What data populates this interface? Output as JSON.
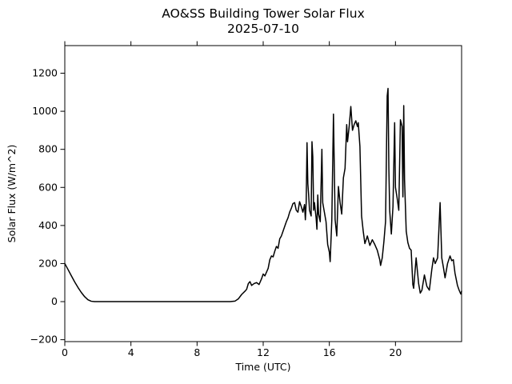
{
  "figure": {
    "background_color": "#ffffff",
    "text_color": "#000000"
  },
  "chart_data": {
    "type": "line",
    "title": "AO&SS Building Tower Solar Flux",
    "subtitle": "2025-07-10",
    "xlabel": "Time (UTC)",
    "ylabel": "Solar Flux (W/m^2)",
    "xlim": [
      0,
      24
    ],
    "ylim": [
      -210,
      1345
    ],
    "x_ticks": [
      0,
      4,
      8,
      12,
      16,
      20
    ],
    "y_ticks": [
      -200,
      0,
      200,
      400,
      600,
      800,
      1000,
      1200
    ],
    "grid": false,
    "legend": null,
    "line_color": "#000000",
    "line_width": 1.5,
    "x": [
      0.0,
      0.2,
      0.4,
      0.6,
      0.8,
      1.0,
      1.2,
      1.4,
      1.6,
      1.8,
      3.0,
      5.0,
      7.0,
      9.0,
      10.0,
      10.3,
      10.5,
      10.7,
      10.9,
      11.0,
      11.1,
      11.2,
      11.3,
      11.45,
      11.6,
      11.75,
      11.9,
      12.0,
      12.1,
      12.2,
      12.3,
      12.4,
      12.5,
      12.6,
      12.7,
      12.8,
      12.9,
      13.0,
      13.1,
      13.2,
      13.3,
      13.4,
      13.5,
      13.6,
      13.7,
      13.8,
      13.9,
      14.0,
      14.1,
      14.2,
      14.3,
      14.4,
      14.5,
      14.55,
      14.6,
      14.65,
      14.7,
      14.75,
      14.8,
      14.9,
      14.95,
      15.0,
      15.05,
      15.1,
      15.2,
      15.25,
      15.3,
      15.35,
      15.45,
      15.55,
      15.6,
      15.7,
      15.8,
      15.9,
      16.0,
      16.05,
      16.15,
      16.25,
      16.35,
      16.45,
      16.55,
      16.65,
      16.75,
      16.85,
      16.95,
      17.05,
      17.1,
      17.2,
      17.3,
      17.4,
      17.5,
      17.6,
      17.7,
      17.75,
      17.85,
      17.95,
      18.05,
      18.15,
      18.3,
      18.45,
      18.6,
      18.75,
      18.9,
      19.05,
      19.1,
      19.2,
      19.3,
      19.4,
      19.5,
      19.55,
      19.6,
      19.65,
      19.75,
      19.85,
      19.95,
      20.0,
      20.1,
      20.2,
      20.3,
      20.4,
      20.45,
      20.5,
      20.55,
      20.65,
      20.75,
      20.85,
      20.95,
      21.05,
      21.1,
      21.25,
      21.4,
      21.5,
      21.6,
      21.75,
      21.9,
      22.05,
      22.2,
      22.3,
      22.4,
      22.55,
      22.7,
      22.8,
      22.9,
      23.0,
      23.15,
      23.3,
      23.4,
      23.5,
      23.6,
      23.75,
      23.85,
      23.95,
      24.0
    ],
    "y": [
      200,
      168,
      135,
      103,
      74,
      48,
      26,
      10,
      2,
      0,
      0,
      0,
      0,
      0,
      0,
      3,
      15,
      38,
      55,
      65,
      95,
      105,
      85,
      95,
      100,
      90,
      120,
      145,
      135,
      155,
      175,
      220,
      240,
      235,
      265,
      290,
      280,
      330,
      345,
      370,
      395,
      420,
      440,
      470,
      490,
      515,
      520,
      480,
      470,
      525,
      500,
      470,
      510,
      430,
      520,
      835,
      620,
      560,
      480,
      450,
      840,
      760,
      480,
      520,
      440,
      380,
      560,
      460,
      420,
      800,
      520,
      470,
      420,
      300,
      260,
      210,
      430,
      985,
      430,
      345,
      605,
      520,
      460,
      650,
      700,
      930,
      840,
      920,
      1025,
      900,
      930,
      950,
      920,
      940,
      815,
      450,
      370,
      305,
      345,
      295,
      325,
      300,
      270,
      220,
      190,
      230,
      315,
      420,
      1080,
      1120,
      700,
      480,
      355,
      500,
      940,
      600,
      545,
      480,
      955,
      920,
      550,
      1030,
      640,
      370,
      310,
      280,
      270,
      90,
      70,
      230,
      95,
      45,
      60,
      140,
      80,
      60,
      170,
      230,
      200,
      230,
      520,
      230,
      180,
      125,
      200,
      240,
      215,
      220,
      150,
      85,
      60,
      40,
      55
    ]
  }
}
